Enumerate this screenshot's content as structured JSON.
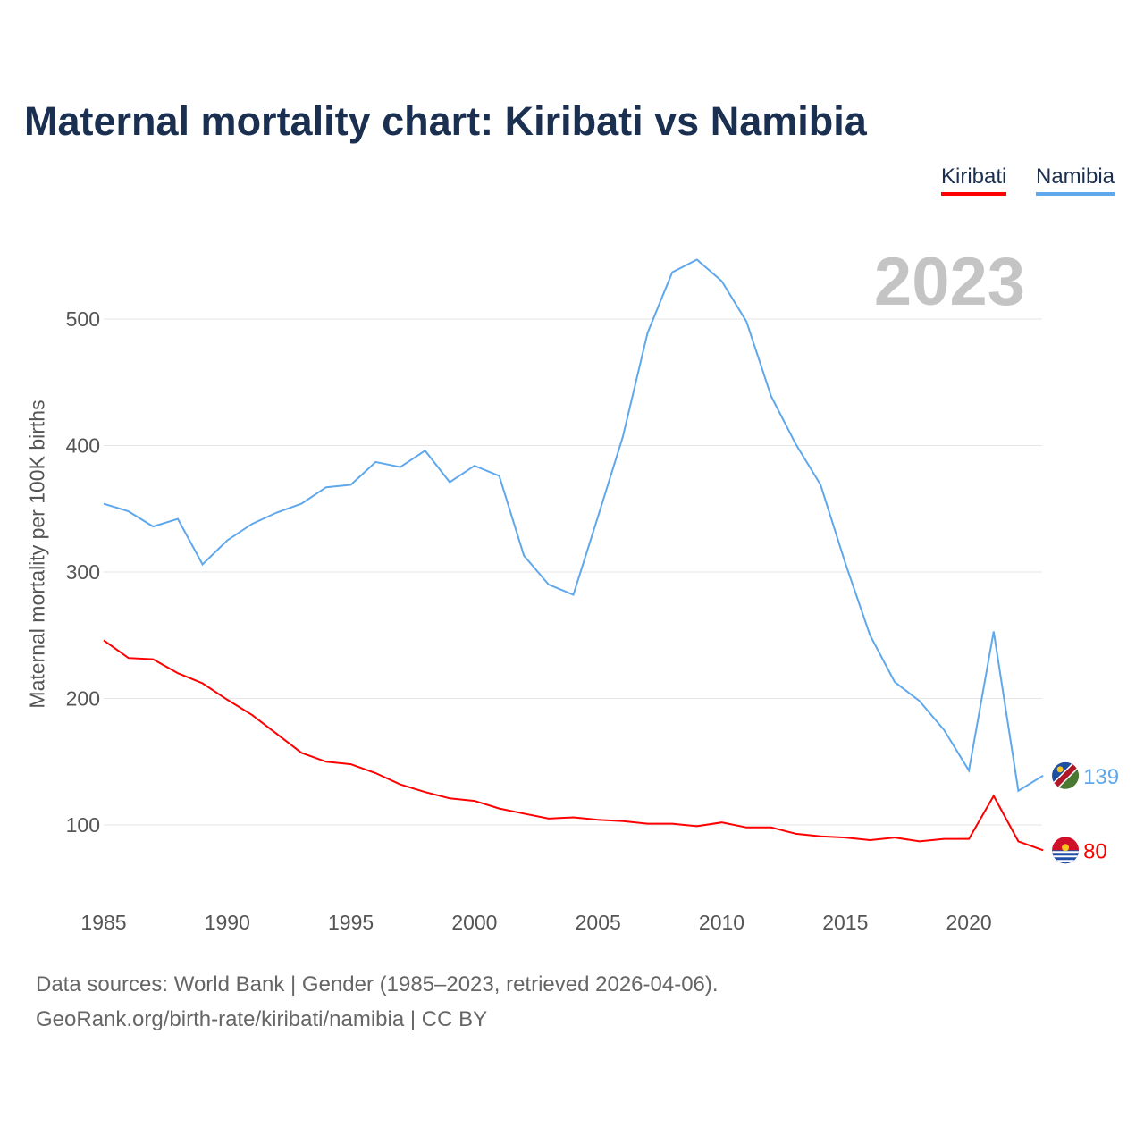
{
  "chart_data": {
    "type": "line",
    "title": "Maternal mortality chart: Kiribati vs Namibia",
    "ylabel": "Maternal mortality per 100K births",
    "xlabel": "",
    "year_label": "2023",
    "x": [
      1985,
      1986,
      1987,
      1988,
      1989,
      1990,
      1991,
      1992,
      1993,
      1994,
      1995,
      1996,
      1997,
      1998,
      1999,
      2000,
      2001,
      2002,
      2003,
      2004,
      2005,
      2006,
      2007,
      2008,
      2009,
      2010,
      2011,
      2012,
      2013,
      2014,
      2015,
      2016,
      2017,
      2018,
      2019,
      2020,
      2021,
      2022,
      2023
    ],
    "series": [
      {
        "name": "Kiribati",
        "color": "#ff0000",
        "end_label": "80",
        "values": [
          246,
          232,
          231,
          220,
          212,
          199,
          187,
          172,
          157,
          150,
          148,
          141,
          132,
          126,
          121,
          119,
          113,
          109,
          105,
          106,
          104,
          103,
          101,
          101,
          99,
          102,
          98,
          98,
          93,
          91,
          90,
          88,
          90,
          87,
          89,
          89,
          123,
          87,
          80
        ]
      },
      {
        "name": "Namibia",
        "color": "#5fa8ec",
        "end_label": "139",
        "values": [
          354,
          348,
          336,
          342,
          306,
          325,
          338,
          347,
          354,
          367,
          369,
          387,
          383,
          396,
          371,
          384,
          376,
          313,
          290,
          282,
          344,
          407,
          489,
          537,
          547,
          530,
          498,
          439,
          401,
          369,
          307,
          250,
          213,
          198,
          175,
          143,
          253,
          127,
          139
        ]
      }
    ],
    "xticks": [
      "1985",
      "1990",
      "1995",
      "2000",
      "2005",
      "2010",
      "2015",
      "2020"
    ],
    "yticks": [
      "100",
      "200",
      "300",
      "400",
      "500"
    ],
    "ylim": [
      45,
      560
    ],
    "grid": true,
    "legend_placement": "top-right"
  },
  "footer": {
    "line1": "Data sources: World Bank | Gender (1985–2023, retrieved 2026-04-06).",
    "line2": "GeoRank.org/birth-rate/kiribati/namibia | CC BY"
  }
}
